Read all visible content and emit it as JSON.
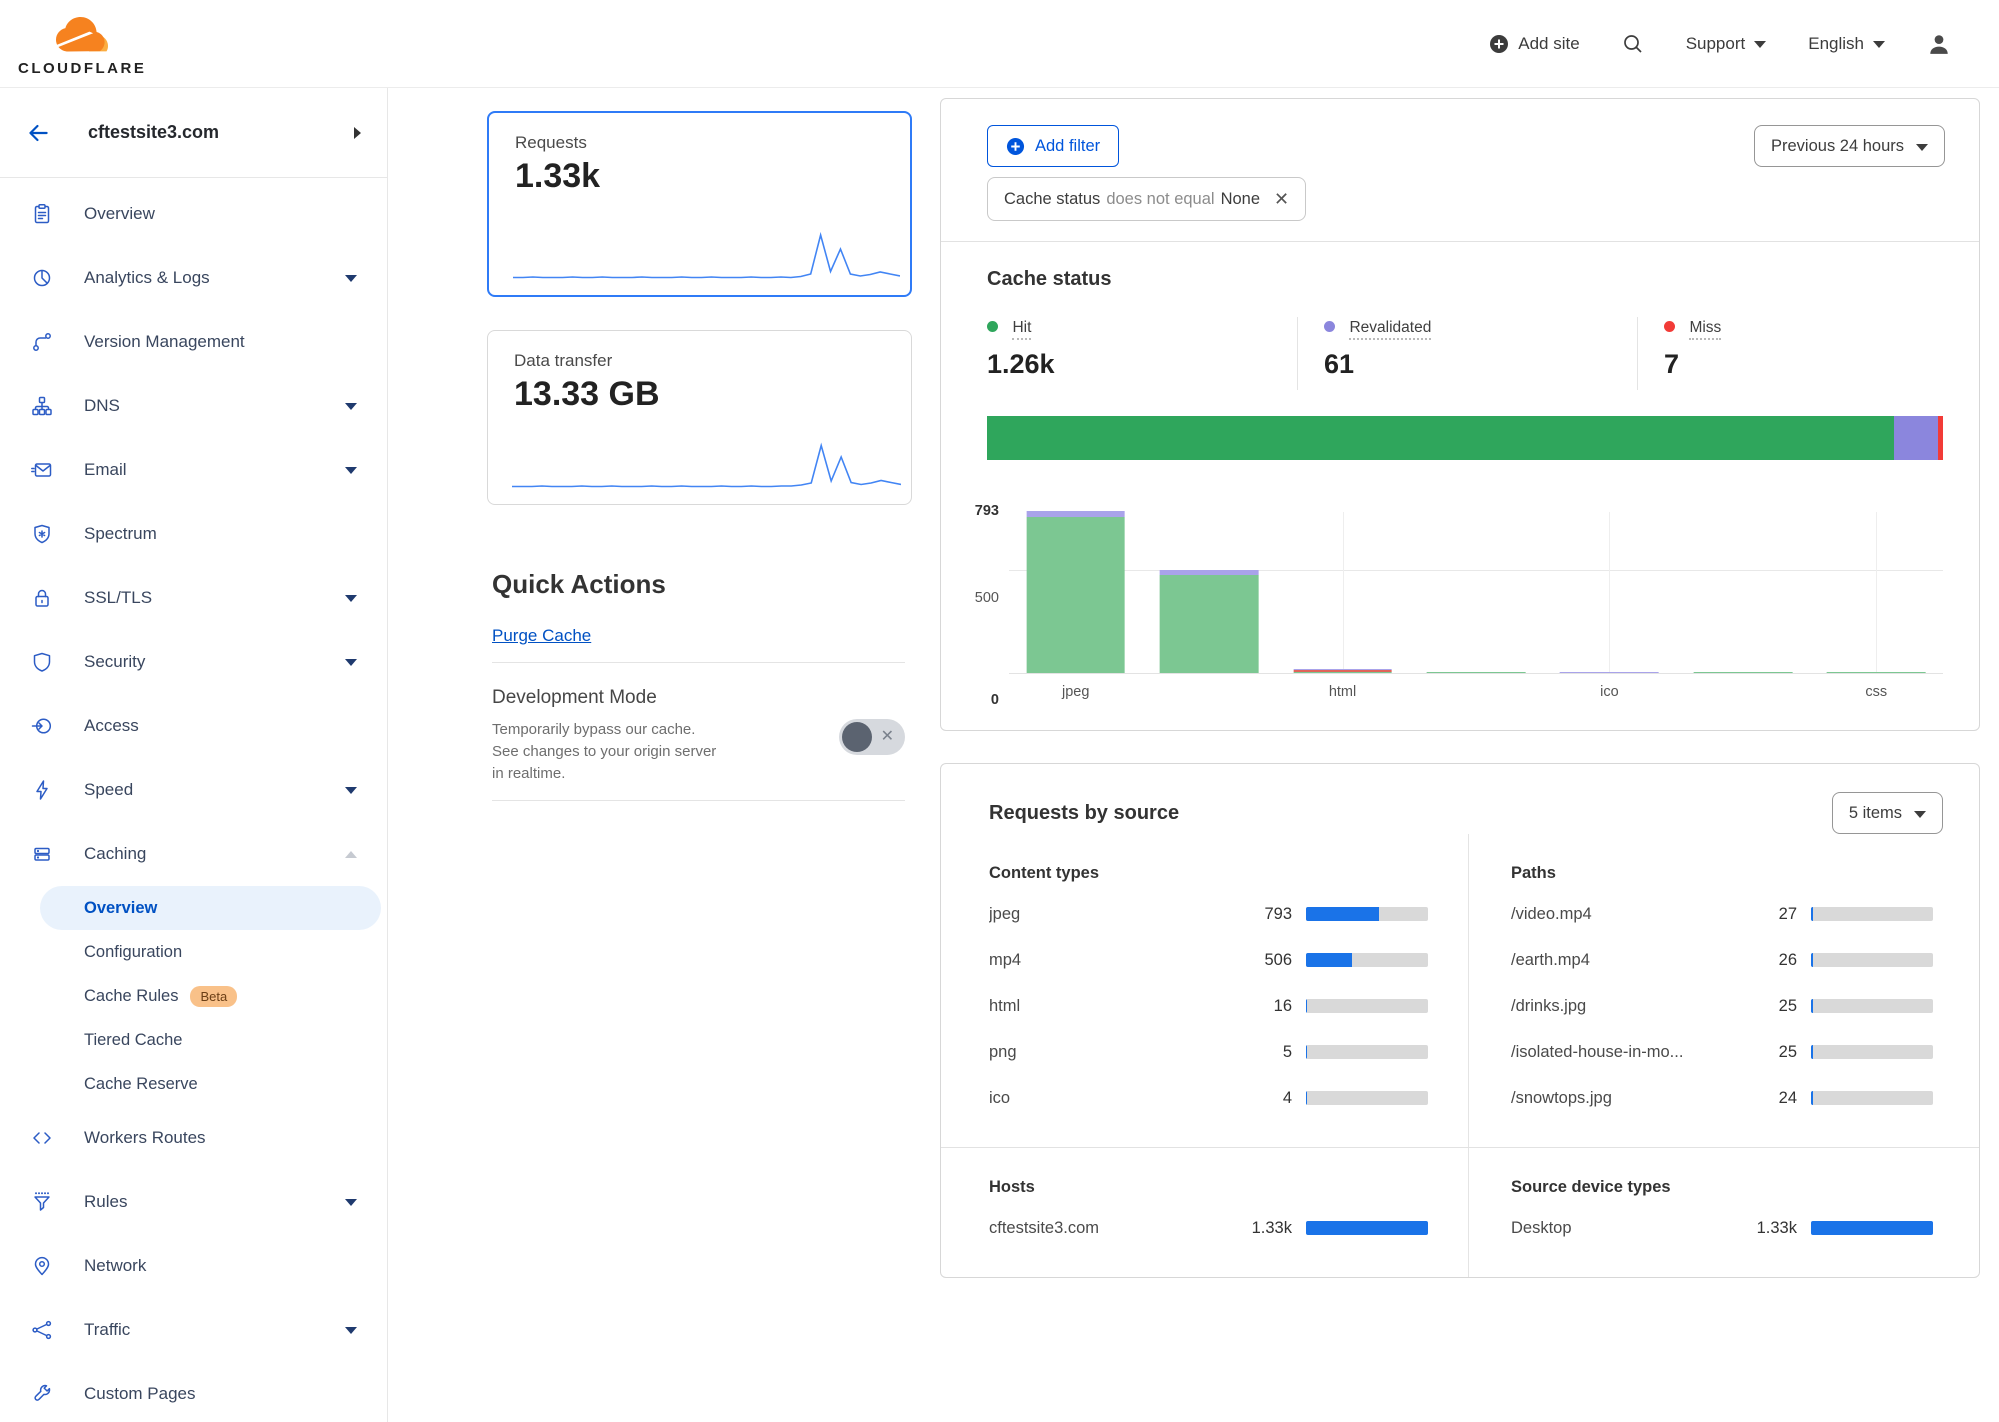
{
  "colors": {
    "accent_blue": "#0055dc",
    "link_blue": "#0051c3",
    "list_bar_blue": "#1a73e8",
    "sparkline_blue": "#4285f4",
    "selected_card_border": "#2f7bf7",
    "hit_green": "#2fa65c",
    "hit_green_light": "#7cc792",
    "revalidated_purple": "#8b86dd",
    "revalidated_purple_light": "#a9a3ea",
    "miss_red": "#f23b37",
    "sidebar_icon_blue": "#2c5cc5",
    "active_item_bg": "#e9f2fc",
    "beta_badge_bg": "#f9c189",
    "beta_badge_text": "#6b3f16",
    "track_gray": "#d9d9d9"
  },
  "header": {
    "brand": "CLOUDFLARE",
    "add_site_label": "Add site",
    "support_label": "Support",
    "language_label": "English"
  },
  "sidebar": {
    "site_name": "cftestsite3.com",
    "items": [
      {
        "label": "Overview"
      },
      {
        "label": "Analytics & Logs",
        "expandable": true
      },
      {
        "label": "Version Management"
      },
      {
        "label": "DNS",
        "expandable": true
      },
      {
        "label": "Email",
        "expandable": true
      },
      {
        "label": "Spectrum"
      },
      {
        "label": "SSL/TLS",
        "expandable": true
      },
      {
        "label": "Security",
        "expandable": true
      },
      {
        "label": "Access"
      },
      {
        "label": "Speed",
        "expandable": true
      },
      {
        "label": "Caching",
        "expandable": true,
        "expanded": true
      },
      {
        "label": "Workers Routes"
      },
      {
        "label": "Rules",
        "expandable": true
      },
      {
        "label": "Network"
      },
      {
        "label": "Traffic",
        "expandable": true
      },
      {
        "label": "Custom Pages"
      }
    ],
    "caching_children": [
      {
        "label": "Overview",
        "active": true
      },
      {
        "label": "Configuration"
      },
      {
        "label": "Cache Rules",
        "badge": "Beta"
      },
      {
        "label": "Tiered Cache"
      },
      {
        "label": "Cache Reserve"
      }
    ]
  },
  "summary_cards": [
    {
      "title": "Requests",
      "value": "1.33k",
      "selected": true
    },
    {
      "title": "Data transfer",
      "value": "13.33 GB",
      "selected": false
    }
  ],
  "quick_actions": {
    "title": "Quick Actions",
    "purge_cache_label": "Purge Cache",
    "development_mode": {
      "title": "Development Mode",
      "description": "Temporarily bypass our cache. See changes to your origin server in realtime.",
      "state": "off"
    }
  },
  "filter_bar": {
    "add_filter_label": "Add filter",
    "chip": {
      "field": "Cache status",
      "operator": "does not equal",
      "value": "None"
    },
    "time_range_label": "Previous 24 hours"
  },
  "cache_status_section": {
    "title": "Cache status",
    "legend": [
      {
        "label": "Hit",
        "display": "1.26k",
        "value": 1260,
        "color": "#2fa65c"
      },
      {
        "label": "Revalidated",
        "display": "61",
        "value": 61,
        "color": "#8b86dd"
      },
      {
        "label": "Miss",
        "display": "7",
        "value": 7,
        "color": "#f23b37"
      }
    ]
  },
  "requests_by_source": {
    "title": "Requests by source",
    "items_selector_label": "5 items",
    "lists": {
      "content_types": {
        "title": "Content types",
        "max": 1330,
        "rows": [
          {
            "label": "jpeg",
            "display": "793",
            "value": 793
          },
          {
            "label": "mp4",
            "display": "506",
            "value": 506
          },
          {
            "label": "html",
            "display": "16",
            "value": 16
          },
          {
            "label": "png",
            "display": "5",
            "value": 5
          },
          {
            "label": "ico",
            "display": "4",
            "value": 4
          }
        ]
      },
      "paths": {
        "title": "Paths",
        "max": 1330,
        "rows": [
          {
            "label": "/video.mp4",
            "display": "27",
            "value": 27
          },
          {
            "label": "/earth.mp4",
            "display": "26",
            "value": 26
          },
          {
            "label": "/drinks.jpg",
            "display": "25",
            "value": 25
          },
          {
            "label": "/isolated-house-in-mo...",
            "display": "25",
            "value": 25
          },
          {
            "label": "/snowtops.jpg",
            "display": "24",
            "value": 24
          }
        ]
      },
      "hosts": {
        "title": "Hosts",
        "max": 1330,
        "rows": [
          {
            "label": "cftestsite3.com",
            "display": "1.33k",
            "value": 1330
          }
        ]
      },
      "devices": {
        "title": "Source device types",
        "max": 1330,
        "rows": [
          {
            "label": "Desktop",
            "display": "1.33k",
            "value": 1330
          }
        ]
      }
    }
  },
  "chart_data": [
    {
      "type": "line",
      "name": "requests-sparkline",
      "x_range": "previous 24 hours",
      "y": [
        3,
        3,
        4,
        3,
        3,
        3,
        4,
        3,
        3,
        4,
        3,
        3,
        3,
        4,
        3,
        3,
        3,
        4,
        3,
        3,
        4,
        3,
        3,
        3,
        4,
        3,
        3,
        4,
        3,
        5,
        10,
        88,
        15,
        60,
        10,
        6,
        9,
        14,
        10,
        6
      ]
    },
    {
      "type": "line",
      "name": "data-transfer-sparkline",
      "x_range": "previous 24 hours",
      "y": [
        3,
        3,
        3,
        4,
        3,
        3,
        3,
        4,
        3,
        3,
        4,
        3,
        3,
        3,
        4,
        3,
        3,
        4,
        3,
        3,
        3,
        4,
        3,
        3,
        4,
        3,
        3,
        4,
        4,
        6,
        10,
        85,
        14,
        62,
        11,
        7,
        10,
        15,
        11,
        7
      ]
    },
    {
      "type": "bar",
      "variant": "stacked-horizontal",
      "name": "cache-status-share",
      "series": [
        {
          "name": "Hit",
          "value": 1260
        },
        {
          "name": "Revalidated",
          "value": 61
        },
        {
          "name": "Miss",
          "value": 7
        }
      ],
      "colors": {
        "Hit": "#2fa65c",
        "Revalidated": "#8b86dd",
        "Miss": "#f23b37"
      }
    },
    {
      "type": "bar",
      "variant": "stacked-columns",
      "name": "cache-status-by-content-type",
      "ylim": [
        0,
        793
      ],
      "ytick_labels": [
        "793",
        "500",
        "0"
      ],
      "gridline_y": 500,
      "xtick_labels": [
        "jpeg",
        "html",
        "ico",
        "css"
      ],
      "seg_colors": {
        "hit": "#7cc792",
        "miss": "#e0645a",
        "revalidated": "#a9a3ea"
      },
      "bars": [
        {
          "label": "jpeg",
          "tick": true,
          "total": 793,
          "segments": {
            "hit": 763,
            "miss": 0,
            "revalidated": 30
          }
        },
        {
          "label": "",
          "tick": false,
          "total": 506,
          "segments": {
            "hit": 481,
            "miss": 0,
            "revalidated": 25
          }
        },
        {
          "label": "html",
          "tick": true,
          "total": 16,
          "segments": {
            "hit": 6,
            "miss": 7,
            "revalidated": 3
          }
        },
        {
          "label": "",
          "tick": false,
          "total": 5,
          "segments": {
            "hit": 5,
            "miss": 0,
            "revalidated": 0
          }
        },
        {
          "label": "ico",
          "tick": true,
          "total": 4,
          "segments": {
            "hit": 0,
            "miss": 0,
            "revalidated": 4
          }
        },
        {
          "label": "",
          "tick": false,
          "total": 1,
          "segments": {
            "hit": 1,
            "miss": 0,
            "revalidated": 0
          }
        },
        {
          "label": "css",
          "tick": true,
          "total": 1,
          "segments": {
            "hit": 1,
            "miss": 0,
            "revalidated": 0
          }
        }
      ]
    }
  ]
}
